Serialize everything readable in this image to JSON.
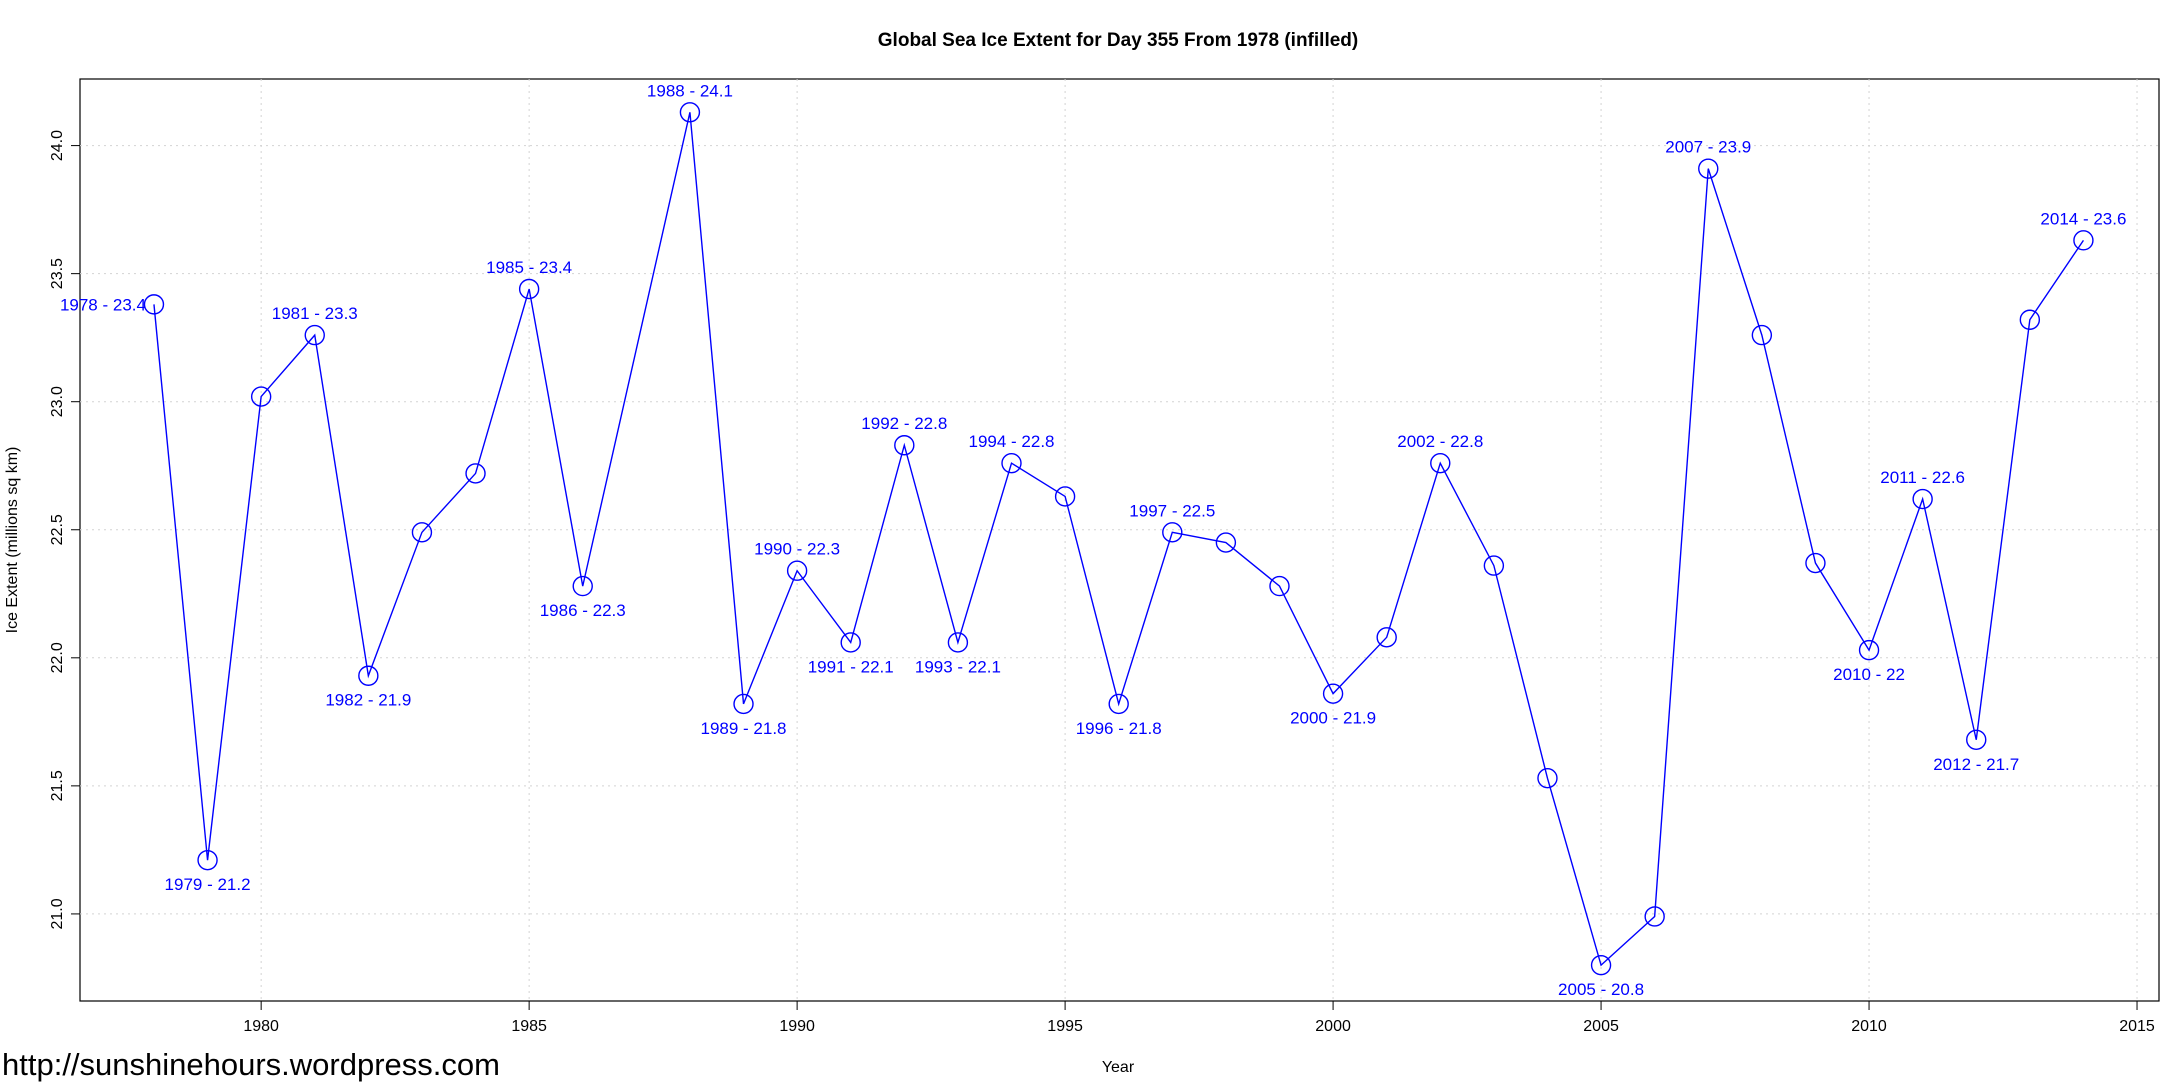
{
  "chart_data": {
    "type": "line",
    "title": "Global Sea Ice Extent for Day 355 From 1978 (infilled)",
    "x_label": "Year",
    "y_label": "Ice Extent (millions sq km)",
    "watermark": "http://sunshinehours.wordpress.com",
    "x": [
      1978,
      1979,
      1980,
      1981,
      1982,
      1983,
      1984,
      1985,
      1986,
      1988,
      1989,
      1990,
      1991,
      1992,
      1993,
      1994,
      1995,
      1996,
      1997,
      1998,
      1999,
      2000,
      2001,
      2002,
      2003,
      2004,
      2005,
      2006,
      2007,
      2008,
      2009,
      2010,
      2011,
      2012,
      2013,
      2014
    ],
    "values": [
      23.38,
      21.21,
      23.02,
      23.26,
      21.93,
      22.49,
      22.72,
      23.44,
      22.28,
      24.13,
      21.82,
      22.34,
      22.06,
      22.83,
      22.06,
      22.76,
      22.63,
      21.82,
      22.49,
      22.45,
      22.28,
      21.86,
      22.08,
      22.76,
      22.36,
      21.53,
      20.8,
      20.99,
      23.91,
      23.26,
      22.37,
      22.03,
      22.62,
      21.68,
      23.32,
      23.63
    ],
    "value_labels": [
      "1978 - 23.4",
      "1979 - 21.2",
      null,
      "1981 - 23.3",
      "1982 - 21.9",
      null,
      null,
      "1985 - 23.4",
      "1986 - 22.3",
      "1988 - 24.1",
      "1989 - 21.8",
      "1990 - 22.3",
      "1991 - 22.1",
      "1992 - 22.8",
      "1993 - 22.1",
      "1994 - 22.8",
      null,
      "1996 - 21.8",
      "1997 - 22.5",
      null,
      null,
      "2000 - 21.9",
      null,
      "2002 - 22.8",
      null,
      null,
      "2005 - 20.8",
      null,
      "2007 - 23.9",
      null,
      null,
      "2010 - 22",
      "2011 - 22.6",
      "2012 - 21.7",
      null,
      "2014 - 23.6"
    ],
    "color": "#0000ff",
    "xlim": [
      1976.62,
      2015.41
    ],
    "ylim": [
      20.66,
      24.26
    ],
    "xticks": [
      1980,
      1985,
      1990,
      1995,
      2000,
      2005,
      2010,
      2015
    ],
    "yticks": [
      {
        "value": 21,
        "label": "21.0"
      },
      21.5,
      {
        "value": 22,
        "label": "22.0"
      },
      22.5,
      {
        "value": 23,
        "label": "23.0"
      },
      23.5,
      {
        "value": 24,
        "label": "24.0"
      }
    ],
    "grid": true
  }
}
